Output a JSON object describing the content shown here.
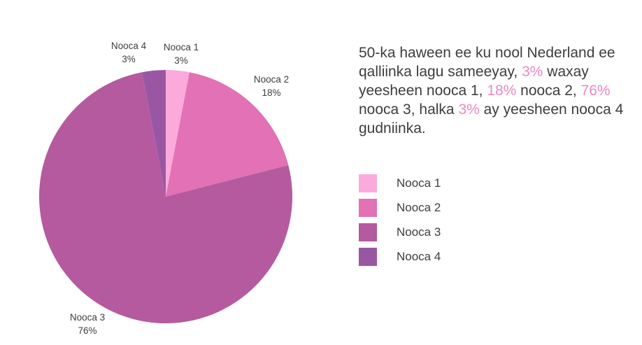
{
  "chart_data": {
    "type": "pie",
    "title": "",
    "start_angle_deg": 0,
    "direction": "clockwise",
    "legend_position": "right",
    "slices": [
      {
        "label": "Nooca 1",
        "value": 3,
        "pct_text": "3%",
        "color": "#fcaadb"
      },
      {
        "label": "Nooca 2",
        "value": 18,
        "pct_text": "18%",
        "color": "#e271b5"
      },
      {
        "label": "Nooca 3",
        "value": 76,
        "pct_text": "76%",
        "color": "#b55a9f"
      },
      {
        "label": "Nooca 4",
        "value": 3,
        "pct_text": "3%",
        "color": "#9957a3"
      }
    ]
  },
  "description": {
    "text_color": "#3d3d3d",
    "highlight_color": "#ec87c3",
    "segments": [
      {
        "text": "50-ka haween ee ku nool Nederland ee qalliinka lagu sameeyay, ",
        "highlight": false
      },
      {
        "text": "3%",
        "highlight": true
      },
      {
        "text": " waxay yeesheen nooca 1, ",
        "highlight": false
      },
      {
        "text": "18%",
        "highlight": true
      },
      {
        "text": " nooca 2, ",
        "highlight": false
      },
      {
        "text": "76%",
        "highlight": true
      },
      {
        "text": " nooca 3, halka ",
        "highlight": false
      },
      {
        "text": "3%",
        "highlight": true
      },
      {
        "text": " ay yeesheen nooca 4 gudniinka.",
        "highlight": false
      }
    ]
  }
}
